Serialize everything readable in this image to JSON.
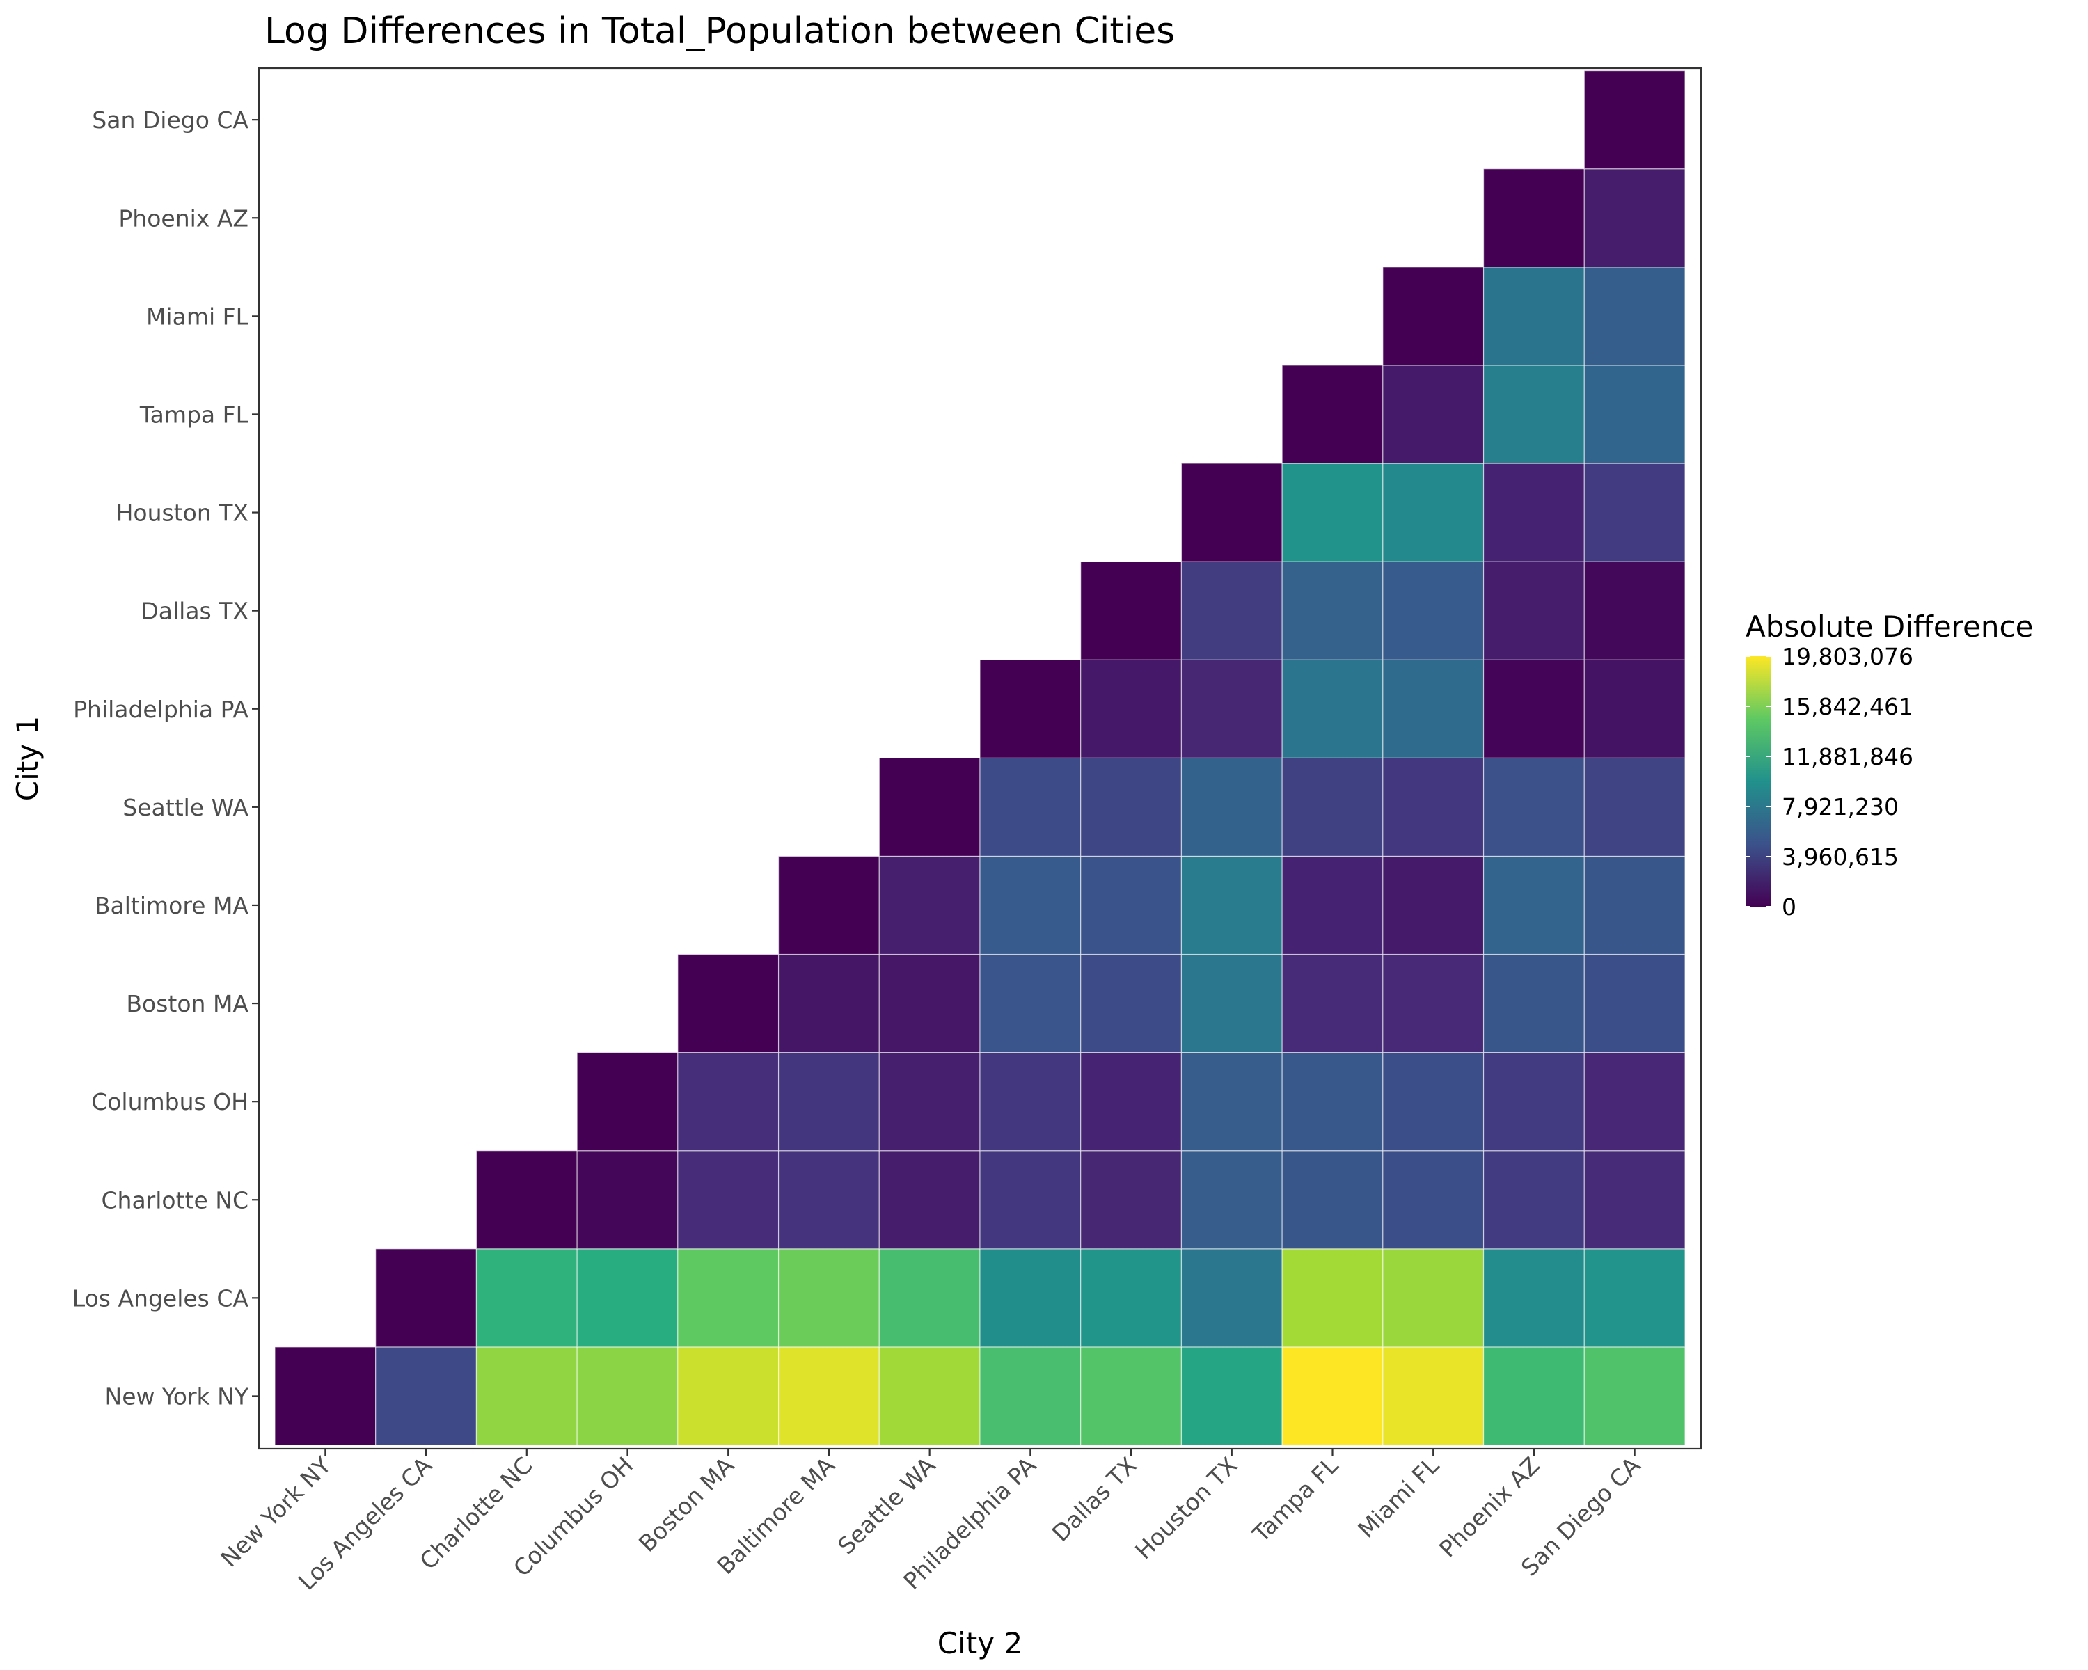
{
  "chart_data": {
    "type": "heatmap",
    "title": "Log Differences in Total_Population between Cities",
    "xlabel": "City 2",
    "ylabel": "City 1",
    "x_categories": [
      "New York NY",
      "Los Angeles CA",
      "Charlotte NC",
      "Columbus OH",
      "Boston MA",
      "Baltimore MA",
      "Seattle WA",
      "Philadelphia PA",
      "Dallas TX",
      "Houston TX",
      "Tampa FL",
      "Miami FL",
      "Phoenix AZ",
      "San Diego CA"
    ],
    "y_categories": [
      "New York NY",
      "Los Angeles CA",
      "Charlotte NC",
      "Columbus OH",
      "Boston MA",
      "Baltimore MA",
      "Seattle WA",
      "Philadelphia PA",
      "Dallas TX",
      "Houston TX",
      "Tampa FL",
      "Miami FL",
      "Phoenix AZ",
      "San Diego CA"
    ],
    "values": [
      [
        0,
        4400000,
        16500000,
        16300000,
        18300000,
        18900000,
        17000000,
        13900000,
        14400000,
        11700000,
        19803076,
        19200000,
        13500000,
        14200000
      ],
      [
        null,
        0,
        12800000,
        12400000,
        14900000,
        15300000,
        13800000,
        9700000,
        10300000,
        7900000,
        17100000,
        16800000,
        9500000,
        10200000
      ],
      [
        null,
        null,
        0,
        300000,
        2600000,
        3000000,
        1700000,
        3300000,
        2200000,
        5800000,
        5300000,
        4700000,
        3500000,
        2500000
      ],
      [
        null,
        null,
        null,
        0,
        2700000,
        3200000,
        1800000,
        3300000,
        2100000,
        5800000,
        5400000,
        4700000,
        3500000,
        2300000
      ],
      [
        null,
        null,
        null,
        null,
        0,
        1200000,
        1300000,
        5200000,
        4600000,
        7900000,
        2500000,
        2400000,
        5300000,
        4700000
      ],
      [
        null,
        null,
        null,
        null,
        null,
        0,
        1800000,
        5700000,
        5100000,
        8300000,
        2000000,
        1500000,
        6400000,
        5300000
      ],
      [
        null,
        null,
        null,
        null,
        null,
        null,
        0,
        4600000,
        4200000,
        6300000,
        3900000,
        3300000,
        4800000,
        4000000
      ],
      [
        null,
        null,
        null,
        null,
        null,
        null,
        null,
        0,
        1400000,
        2200000,
        7800000,
        7000000,
        200000,
        1100000
      ],
      [
        null,
        null,
        null,
        null,
        null,
        null,
        null,
        null,
        0,
        3600000,
        6200000,
        5700000,
        1600000,
        400000
      ],
      [
        null,
        null,
        null,
        null,
        null,
        null,
        null,
        null,
        null,
        0,
        10100000,
        9300000,
        2000000,
        3500000
      ],
      [
        null,
        null,
        null,
        null,
        null,
        null,
        null,
        null,
        null,
        null,
        0,
        1500000,
        8500000,
        6500000
      ],
      [
        null,
        null,
        null,
        null,
        null,
        null,
        null,
        null,
        null,
        null,
        null,
        0,
        7700000,
        5900000
      ],
      [
        null,
        null,
        null,
        null,
        null,
        null,
        null,
        null,
        null,
        null,
        null,
        null,
        0,
        1600000
      ],
      [
        null,
        null,
        null,
        null,
        null,
        null,
        null,
        null,
        null,
        null,
        null,
        null,
        null,
        0
      ]
    ],
    "colorscale": "viridis",
    "color_range": [
      0,
      19803076
    ],
    "legend": {
      "title": "Absolute Difference",
      "ticks": [
        0,
        3960615,
        7921230,
        11881846,
        15842461,
        19803076
      ],
      "tick_labels": [
        "0",
        "3,960,615",
        "7,921,230",
        "11,881,846",
        "15,842,461",
        "19,803,076"
      ],
      "placement": "right"
    },
    "grid": false
  }
}
